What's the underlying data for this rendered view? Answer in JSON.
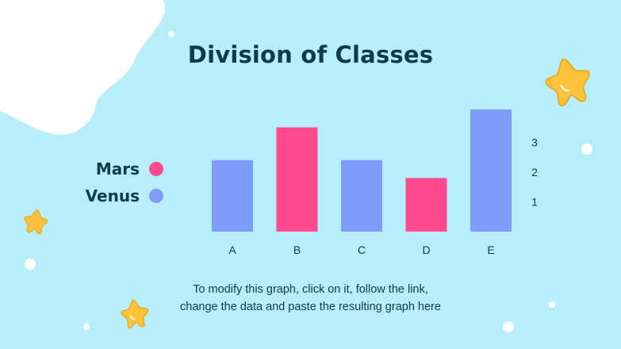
{
  "slide": {
    "title": "Division of Classes",
    "caption_line1": "To modify this graph, click on it, follow the link,",
    "caption_line2": "change the data and paste the resulting graph here"
  },
  "colors": {
    "background": "#b7eefa",
    "blob": "#ffffff",
    "mars": "#ff4a8d",
    "venus": "#7f9cfb",
    "star": "#ffc23a",
    "text": "#0c3b4e"
  },
  "legend": [
    {
      "name": "Mars",
      "color": "#ff4a8d"
    },
    {
      "name": "Venus",
      "color": "#7f9cfb"
    }
  ],
  "chart_data": {
    "type": "bar",
    "title": "",
    "xlabel": "",
    "ylabel": "",
    "categories": [
      "A",
      "B",
      "C",
      "D",
      "E"
    ],
    "values": [
      2.4,
      3.5,
      2.4,
      1.8,
      4.1
    ],
    "series_by_category": [
      "Venus",
      "Mars",
      "Venus",
      "Mars",
      "Venus"
    ],
    "series": [
      {
        "name": "Mars",
        "categories": [
          "B",
          "D"
        ]
      },
      {
        "name": "Venus",
        "categories": [
          "A",
          "C",
          "E"
        ]
      }
    ],
    "y_ticks": [
      1,
      2,
      3
    ],
    "ylim": [
      0,
      4.1
    ],
    "y_axis_side": "right",
    "grid": false
  }
}
